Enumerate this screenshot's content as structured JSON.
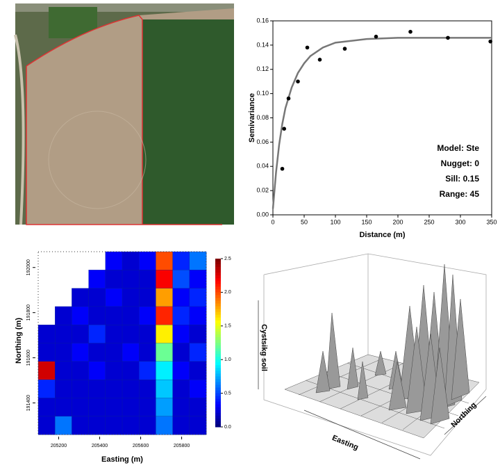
{
  "chart_data": [
    {
      "type": "scatter",
      "xlabel": "Distance (m)",
      "ylabel": "Semivariance",
      "annotations": [
        "Model: Ste",
        "Nugget: 0",
        "Sill: 0.15",
        "Range: 45"
      ],
      "xlim": [
        0,
        350
      ],
      "xticks": [
        0,
        50,
        100,
        150,
        200,
        250,
        300,
        350
      ],
      "ylim": [
        0,
        0.16
      ],
      "yticks": [
        {
          "value": 0,
          "label": "0.00"
        },
        {
          "value": 0.02,
          "label": "0.02"
        },
        {
          "value": 0.04,
          "label": "0.04"
        },
        {
          "value": 0.06,
          "label": "0.06"
        },
        {
          "value": 0.08,
          "label": "0.08"
        },
        {
          "value": 0.1,
          "label": "0.10"
        },
        {
          "value": 0.12,
          "label": "0.12"
        },
        {
          "value": 0.14,
          "label": "0.14"
        },
        {
          "value": 0.16,
          "label": "0.16"
        }
      ],
      "points": {
        "color": "#000000",
        "x": [
          15,
          18,
          25,
          40,
          55,
          75,
          115,
          165,
          220,
          280,
          348
        ],
        "values": [
          0.038,
          0.071,
          0.096,
          0.11,
          0.138,
          0.128,
          0.137,
          0.147,
          0.151,
          0.146,
          0.143
        ]
      },
      "fit": {
        "color": "#777777",
        "x": [
          0,
          5,
          10,
          15,
          20,
          30,
          40,
          50,
          60,
          80,
          100,
          150,
          200,
          250,
          300,
          350
        ],
        "values": [
          0.005,
          0.035,
          0.058,
          0.075,
          0.088,
          0.105,
          0.117,
          0.125,
          0.131,
          0.138,
          0.142,
          0.145,
          0.146,
          0.146,
          0.146,
          0.146
        ]
      }
    },
    {
      "type": "heatmap",
      "xlabel": "Easting (m)",
      "ylabel": "Northing (m)",
      "colormap": "jet",
      "xlim": [
        205100,
        205920
      ],
      "xticks": [
        205200,
        205400,
        205600,
        205800
      ],
      "ylim": [
        191260,
        192070
      ],
      "yticks": [
        191400,
        191600,
        191800,
        192000
      ],
      "zlim": [
        0,
        2.5
      ],
      "zticks": [
        {
          "value": 0,
          "label": "0.0"
        },
        {
          "value": 0.5,
          "label": "0.5"
        },
        {
          "value": 1,
          "label": "1.0"
        },
        {
          "value": 1.5,
          "label": "1.5"
        },
        {
          "value": 2,
          "label": "2.0"
        },
        {
          "value": 2.5,
          "label": "2.5"
        }
      ],
      "z": [
        [
          null,
          null,
          null,
          null,
          0.3,
          0.2,
          0.3,
          2.0,
          0.4,
          0.6
        ],
        [
          null,
          null,
          null,
          0.3,
          0.2,
          0.2,
          0.2,
          2.2,
          0.5,
          0.3
        ],
        [
          null,
          null,
          0.2,
          0.2,
          0.3,
          0.2,
          0.2,
          1.8,
          0.3,
          0.4
        ],
        [
          null,
          0.2,
          0.3,
          0.2,
          0.2,
          0.2,
          0.3,
          2.1,
          0.4,
          0.3
        ],
        [
          0.2,
          0.2,
          0.2,
          0.4,
          0.2,
          0.2,
          0.2,
          1.6,
          0.3,
          0.2
        ],
        [
          0.2,
          0.2,
          0.3,
          0.2,
          0.2,
          0.3,
          0.2,
          1.2,
          0.2,
          0.4
        ],
        [
          2.3,
          0.2,
          0.2,
          0.3,
          0.2,
          0.2,
          0.4,
          0.9,
          0.3,
          0.2
        ],
        [
          0.4,
          0.2,
          0.2,
          0.2,
          0.2,
          0.2,
          0.2,
          0.8,
          0.2,
          0.3
        ],
        [
          0.2,
          0.2,
          0.2,
          0.2,
          0.2,
          0.2,
          0.2,
          0.7,
          0.2,
          0.2
        ],
        [
          0.2,
          0.6,
          0.2,
          0.2,
          0.2,
          0.2,
          0.2,
          0.6,
          0.2,
          0.2
        ]
      ]
    },
    {
      "type": "surface3d",
      "xlabel": "Easting",
      "ylabel": "Northing",
      "zlabel": "Cystsikg soil"
    }
  ]
}
